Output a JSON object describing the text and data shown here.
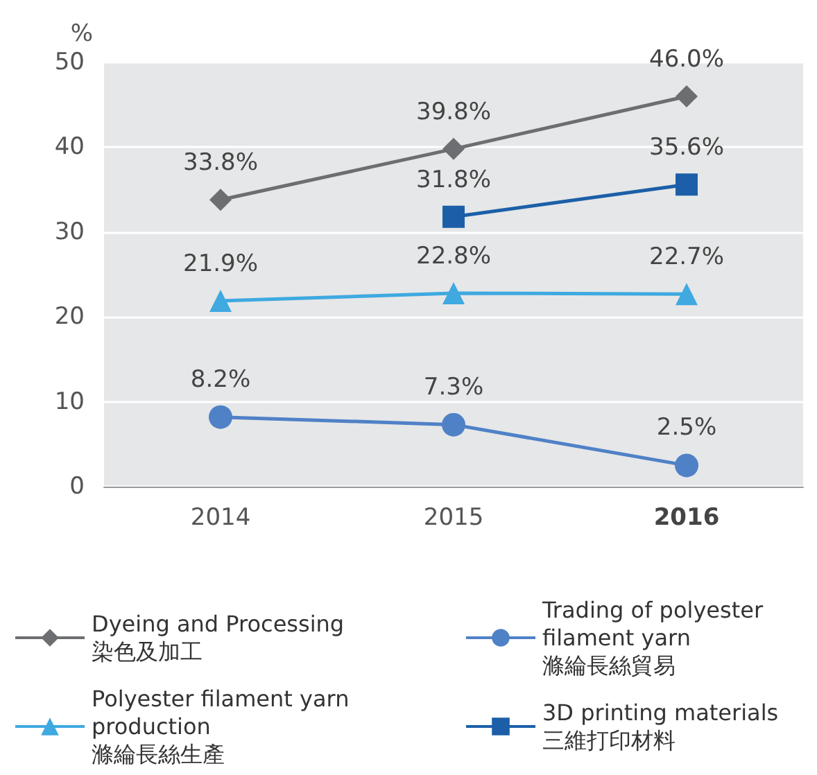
{
  "chart_data": {
    "type": "line",
    "ylabel": "%",
    "categories": [
      "2014",
      "2015",
      "2016"
    ],
    "ylim": [
      0,
      50
    ],
    "yticks": [
      0,
      10,
      20,
      30,
      40,
      50
    ],
    "grid": "y",
    "legend": "bottom",
    "series": [
      {
        "name": "Dyeing and Processing\n染色及加工",
        "color": "#6d6e71",
        "marker": "diamond",
        "values": [
          33.8,
          39.8,
          46.0
        ],
        "value_labels": [
          "33.8%",
          "39.8%",
          "46.0%"
        ]
      },
      {
        "name": "Trading of polyester\nfilament yarn\n滌綸長絲貿易",
        "color": "#4f81c7",
        "marker": "circle",
        "values": [
          8.2,
          7.3,
          2.5
        ],
        "value_labels": [
          "8.2%",
          "7.3%",
          "2.5%"
        ]
      },
      {
        "name": "Polyester filament yarn\nproduction\n滌綸長絲生產",
        "color": "#3fa9e0",
        "marker": "triangle",
        "values": [
          21.9,
          22.8,
          22.7
        ],
        "value_labels": [
          "21.9%",
          "22.8%",
          "22.7%"
        ]
      },
      {
        "name": "3D printing materials\n三維打印材料",
        "color": "#1c5fa8",
        "marker": "square",
        "values": [
          null,
          31.8,
          35.6
        ],
        "value_labels": [
          null,
          "31.8%",
          "35.6%"
        ]
      }
    ]
  }
}
